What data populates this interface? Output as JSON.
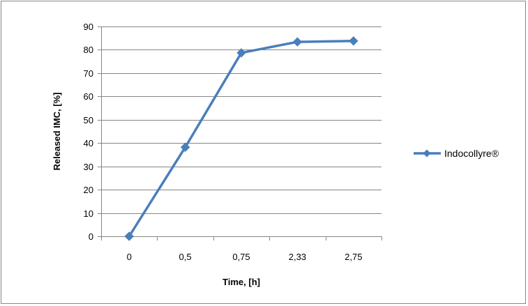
{
  "chart_data": {
    "type": "line",
    "title": "",
    "xlabel": "Time, [h]",
    "ylabel": "Released IMC, [%]",
    "categories": [
      "0",
      "0,5",
      "0,75",
      "2,33",
      "2,75"
    ],
    "series": [
      {
        "name": "Indocollyre®",
        "values": [
          0,
          38.2,
          78.7,
          83.4,
          83.8
        ]
      }
    ],
    "ylim": [
      0,
      90
    ],
    "yticks": [
      0,
      10,
      20,
      30,
      40,
      50,
      60,
      70,
      80,
      90
    ],
    "grid": true,
    "legend": "right",
    "colors": {
      "series": "#4a7ebb",
      "grid": "#868686",
      "axis": "#868686",
      "border": "#868686"
    }
  }
}
